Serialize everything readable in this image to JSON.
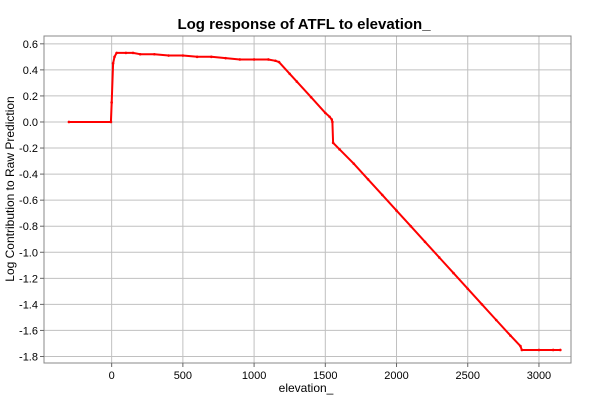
{
  "chart_data": {
    "type": "line",
    "title": "Log response of ATFL to elevation_",
    "xlabel": "elevation_",
    "ylabel": "Log Contribution to Raw Prediction",
    "xlim": [
      -475,
      3225
    ],
    "ylim": [
      -1.85,
      0.66
    ],
    "xticks": [
      0,
      500,
      1000,
      1500,
      2000,
      2500,
      3000
    ],
    "yticks": [
      0.6,
      0.4,
      0.2,
      0.0,
      -0.2,
      -0.4,
      -0.6,
      -0.8,
      -1.0,
      -1.2,
      -1.4,
      -1.6,
      -1.8
    ],
    "xtick_labels": [
      "0",
      "500",
      "1000",
      "1500",
      "2000",
      "2500",
      "3000"
    ],
    "ytick_labels": [
      "0.6",
      "0.4",
      "0.2",
      "0.0",
      "-0.2",
      "-0.4",
      "-0.6",
      "-0.8",
      "-1.0",
      "-1.2",
      "-1.4",
      "-1.6",
      "-1.8"
    ],
    "grid": true,
    "series": [
      {
        "color": "#ff0000",
        "x": [
          -300,
          -5,
          0,
          10,
          20,
          35,
          100,
          150,
          200,
          300,
          400,
          500,
          600,
          700,
          800,
          900,
          1000,
          1100,
          1150,
          1175,
          1250,
          1300,
          1400,
          1500,
          1530,
          1545,
          1550,
          1555,
          1600,
          1700,
          1800,
          1900,
          2000,
          2100,
          2200,
          2300,
          2400,
          2500,
          2600,
          2700,
          2800,
          2870,
          2880,
          3000,
          3100,
          3150
        ],
        "y": [
          0.0,
          0.0,
          0.15,
          0.45,
          0.5,
          0.53,
          0.53,
          0.53,
          0.52,
          0.52,
          0.51,
          0.51,
          0.5,
          0.5,
          0.49,
          0.48,
          0.48,
          0.48,
          0.47,
          0.46,
          0.37,
          0.31,
          0.19,
          0.07,
          0.04,
          0.02,
          0.0,
          -0.16,
          -0.21,
          -0.32,
          -0.44,
          -0.56,
          -0.68,
          -0.8,
          -0.92,
          -1.04,
          -1.16,
          -1.28,
          -1.4,
          -1.52,
          -1.64,
          -1.72,
          -1.75,
          -1.75,
          -1.75,
          -1.75
        ]
      }
    ]
  }
}
